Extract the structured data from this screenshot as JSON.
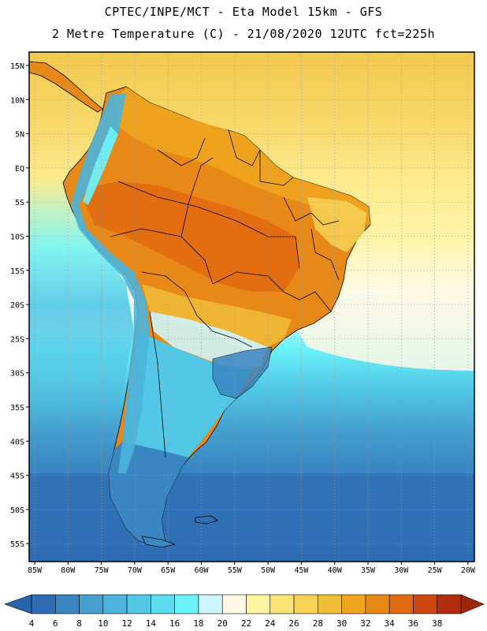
{
  "header": {
    "line1": "CPTEC/INPE/MCT -  Eta Model 15km - GFS",
    "line2": "2 Metre Temperature (C) - 21/08/2020 12UTC fct=225h"
  },
  "axes": {
    "lat_labels": [
      "15N",
      "10N",
      "5N",
      "EQ",
      "5S",
      "10S",
      "15S",
      "20S",
      "25S",
      "30S",
      "35S",
      "40S",
      "45S",
      "50S",
      "55S"
    ],
    "lon_labels": [
      "85W",
      "80W",
      "75W",
      "70W",
      "65W",
      "60W",
      "55W",
      "50W",
      "45W",
      "40W",
      "35W",
      "30W",
      "25W",
      "20W"
    ]
  },
  "colorbar": {
    "colors": [
      "#2f6cb3",
      "#3a86c2",
      "#45a0cf",
      "#4cb4dc",
      "#52c8e6",
      "#5cdcee",
      "#6cf4fb",
      "#cff5fb",
      "#fff8e4",
      "#fff59e",
      "#fbe276",
      "#f7d257",
      "#f1be38",
      "#efa51f",
      "#e88816",
      "#e06a11",
      "#cf4710",
      "#b12e0d"
    ],
    "labels": [
      "4",
      "6",
      "8",
      "10",
      "12",
      "14",
      "16",
      "18",
      "20",
      "22",
      "24",
      "26",
      "28",
      "30",
      "32",
      "34",
      "36",
      "38"
    ],
    "arrow_low": "#2a64ad",
    "arrow_high": "#9f280b"
  },
  "regions": [
    {
      "name": "ocean-north-warm",
      "color": "#f6d264"
    },
    {
      "name": "ocean-subtropical",
      "color": "#fff59e"
    },
    {
      "name": "ocean-cool",
      "color": "#5cdcee"
    },
    {
      "name": "ocean-cold",
      "color": "#2f6cb3"
    },
    {
      "name": "amazon-hot",
      "color": "#e88816"
    },
    {
      "name": "andes-cold",
      "color": "#4cb4dc"
    },
    {
      "name": "patagonia",
      "color": "#3a86c2"
    }
  ]
}
